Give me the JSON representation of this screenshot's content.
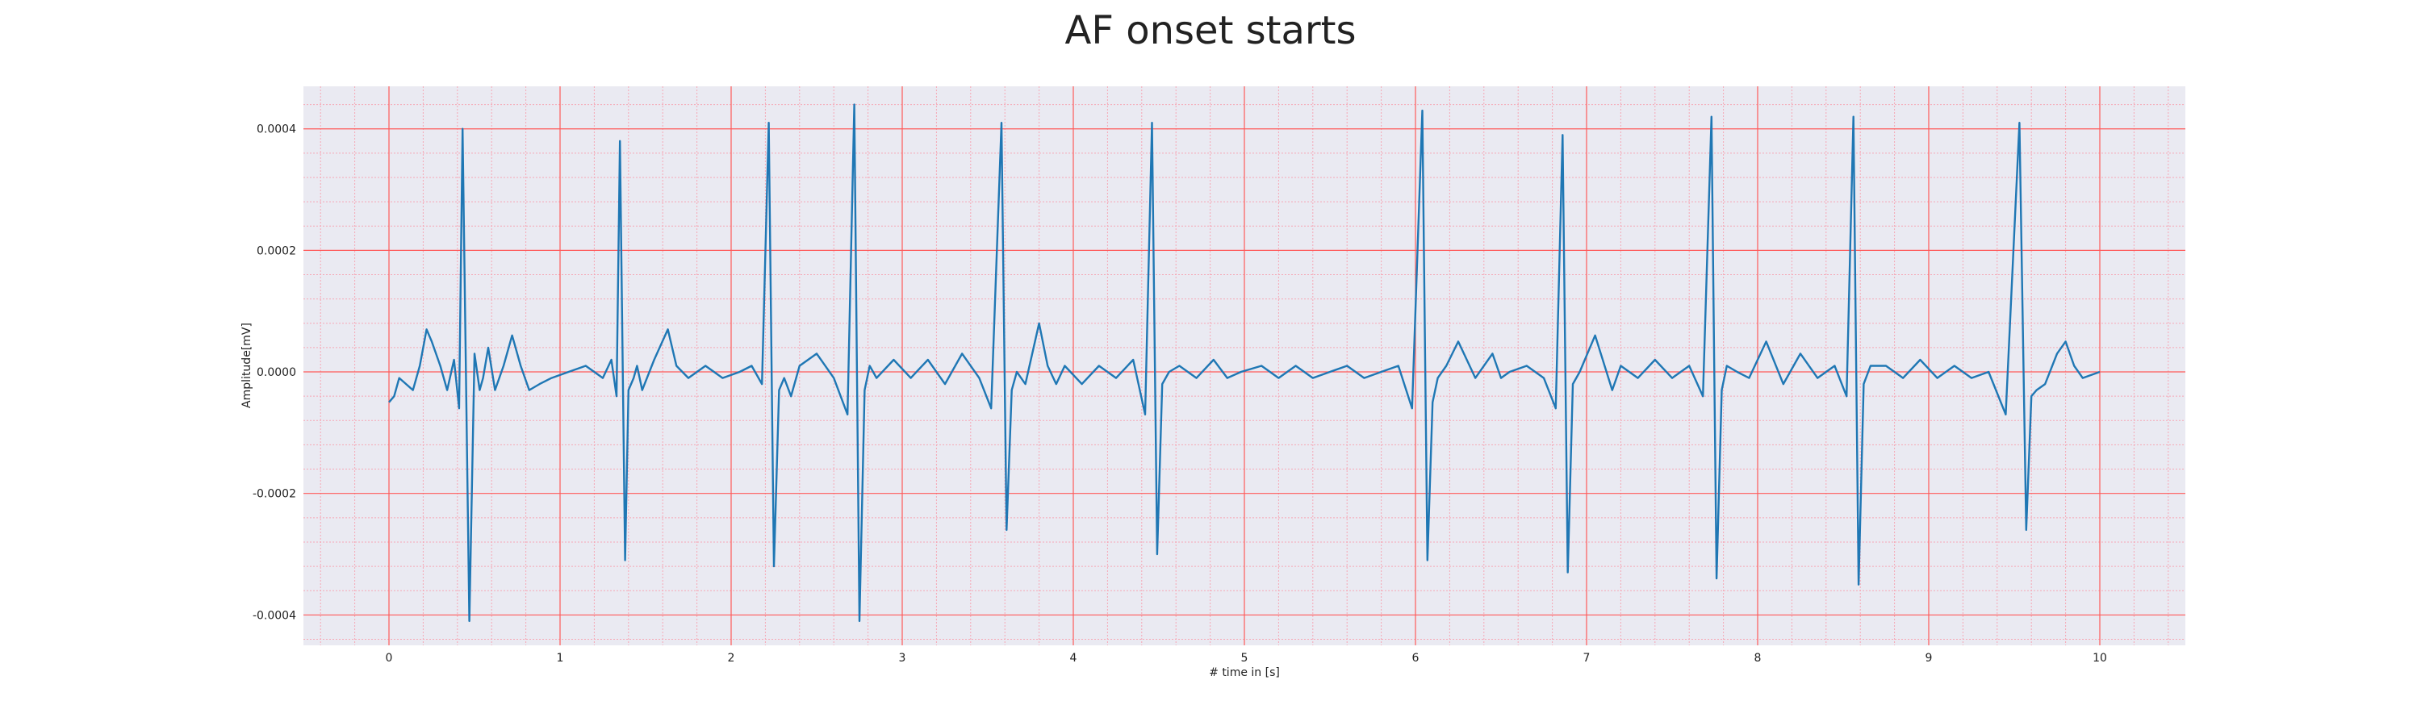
{
  "chart_data": {
    "type": "line",
    "title": "AF onset starts",
    "xlabel": "# time in [s]",
    "ylabel": "Amplitude[mV]",
    "xlim": [
      -0.5,
      10.5
    ],
    "ylim": [
      -0.00045,
      0.00047
    ],
    "x_ticks": [
      0,
      1,
      2,
      3,
      4,
      5,
      6,
      7,
      8,
      9,
      10
    ],
    "x_tick_labels": [
      "0",
      "1",
      "2",
      "3",
      "4",
      "5",
      "6",
      "7",
      "8",
      "9",
      "10"
    ],
    "y_ticks": [
      -0.0004,
      -0.0002,
      0.0,
      0.0002,
      0.0004
    ],
    "y_tick_labels": [
      "-0.0004",
      "-0.0002",
      "0.0000",
      "0.0002",
      "0.0004"
    ],
    "grid": true,
    "colors": {
      "line": "#1f77b4",
      "plot_background": "#eaeaf2",
      "major_grid": "#ff5a5a",
      "minor_grid": "#f6a7b5"
    },
    "series": [
      {
        "x": [
          0.0,
          0.03,
          0.06,
          0.1,
          0.14,
          0.18,
          0.22,
          0.25,
          0.3,
          0.34,
          0.38,
          0.41,
          0.43,
          0.47,
          0.5,
          0.53,
          0.55,
          0.58,
          0.62,
          0.67,
          0.72,
          0.77,
          0.82,
          0.88,
          0.95,
          1.05,
          1.15,
          1.25,
          1.3,
          1.33,
          1.35,
          1.38,
          1.4,
          1.43,
          1.45,
          1.48,
          1.55,
          1.63,
          1.68,
          1.75,
          1.85,
          1.95,
          2.05,
          2.12,
          2.18,
          2.22,
          2.25,
          2.28,
          2.31,
          2.35,
          2.4,
          2.5,
          2.6,
          2.68,
          2.72,
          2.75,
          2.78,
          2.81,
          2.85,
          2.95,
          3.05,
          3.15,
          3.25,
          3.35,
          3.45,
          3.52,
          3.58,
          3.61,
          3.64,
          3.67,
          3.72,
          3.8,
          3.85,
          3.9,
          3.95,
          4.05,
          4.15,
          4.25,
          4.35,
          4.42,
          4.46,
          4.49,
          4.52,
          4.56,
          4.62,
          4.72,
          4.82,
          4.9,
          4.98,
          5.1,
          5.2,
          5.3,
          5.4,
          5.5,
          5.6,
          5.7,
          5.8,
          5.9,
          5.98,
          6.04,
          6.07,
          6.1,
          6.13,
          6.18,
          6.25,
          6.35,
          6.45,
          6.5,
          6.55,
          6.65,
          6.75,
          6.82,
          6.86,
          6.89,
          6.92,
          6.96,
          7.05,
          7.15,
          7.2,
          7.3,
          7.4,
          7.5,
          7.6,
          7.68,
          7.73,
          7.76,
          7.79,
          7.82,
          7.88,
          7.95,
          8.05,
          8.15,
          8.25,
          8.35,
          8.45,
          8.52,
          8.56,
          8.59,
          8.62,
          8.66,
          8.75,
          8.85,
          8.95,
          9.05,
          9.15,
          9.25,
          9.35,
          9.45,
          9.53,
          9.57,
          9.6,
          9.63,
          9.68,
          9.75,
          9.8,
          9.85,
          9.9,
          10.0
        ],
        "y": [
          -5e-05,
          -4e-05,
          -1e-05,
          -2e-05,
          -3e-05,
          1e-05,
          7e-05,
          5e-05,
          1e-05,
          -3e-05,
          2e-05,
          -6e-05,
          0.0004,
          -0.00041,
          3e-05,
          -3e-05,
          -1e-05,
          4e-05,
          -3e-05,
          1e-05,
          6e-05,
          1e-05,
          -3e-05,
          -2e-05,
          -1e-05,
          0.0,
          1e-05,
          -1e-05,
          2e-05,
          -4e-05,
          0.00038,
          -0.00031,
          -3e-05,
          -1e-05,
          1e-05,
          -3e-05,
          2e-05,
          7e-05,
          1e-05,
          -1e-05,
          1e-05,
          -1e-05,
          0.0,
          1e-05,
          -2e-05,
          0.00041,
          -0.00032,
          -3e-05,
          -1e-05,
          -4e-05,
          1e-05,
          3e-05,
          -1e-05,
          -7e-05,
          0.00044,
          -0.00041,
          -3e-05,
          1e-05,
          -1e-05,
          2e-05,
          -1e-05,
          2e-05,
          -2e-05,
          3e-05,
          -1e-05,
          -6e-05,
          0.00041,
          -0.00026,
          -3e-05,
          0.0,
          -2e-05,
          8e-05,
          1e-05,
          -2e-05,
          1e-05,
          -2e-05,
          1e-05,
          -1e-05,
          2e-05,
          -7e-05,
          0.00041,
          -0.0003,
          -2e-05,
          0.0,
          1e-05,
          -1e-05,
          2e-05,
          -1e-05,
          0.0,
          1e-05,
          -1e-05,
          1e-05,
          -1e-05,
          0.0,
          1e-05,
          -1e-05,
          0.0,
          1e-05,
          -6e-05,
          0.00043,
          -0.00031,
          -5e-05,
          -1e-05,
          1e-05,
          5e-05,
          -1e-05,
          3e-05,
          -1e-05,
          0.0,
          1e-05,
          -1e-05,
          -6e-05,
          0.00039,
          -0.00033,
          -2e-05,
          0.0,
          6e-05,
          -3e-05,
          1e-05,
          -1e-05,
          2e-05,
          -1e-05,
          1e-05,
          -4e-05,
          0.00042,
          -0.00034,
          -3e-05,
          1e-05,
          0.0,
          -1e-05,
          5e-05,
          -2e-05,
          3e-05,
          -1e-05,
          1e-05,
          -4e-05,
          0.00042,
          -0.00035,
          -2e-05,
          1e-05,
          1e-05,
          -1e-05,
          2e-05,
          -1e-05,
          1e-05,
          -1e-05,
          0.0,
          -7e-05,
          0.00041,
          -0.00026,
          -4e-05,
          -3e-05,
          -2e-05,
          3e-05,
          5e-05,
          1e-05,
          -1e-05,
          0.0
        ]
      }
    ]
  }
}
